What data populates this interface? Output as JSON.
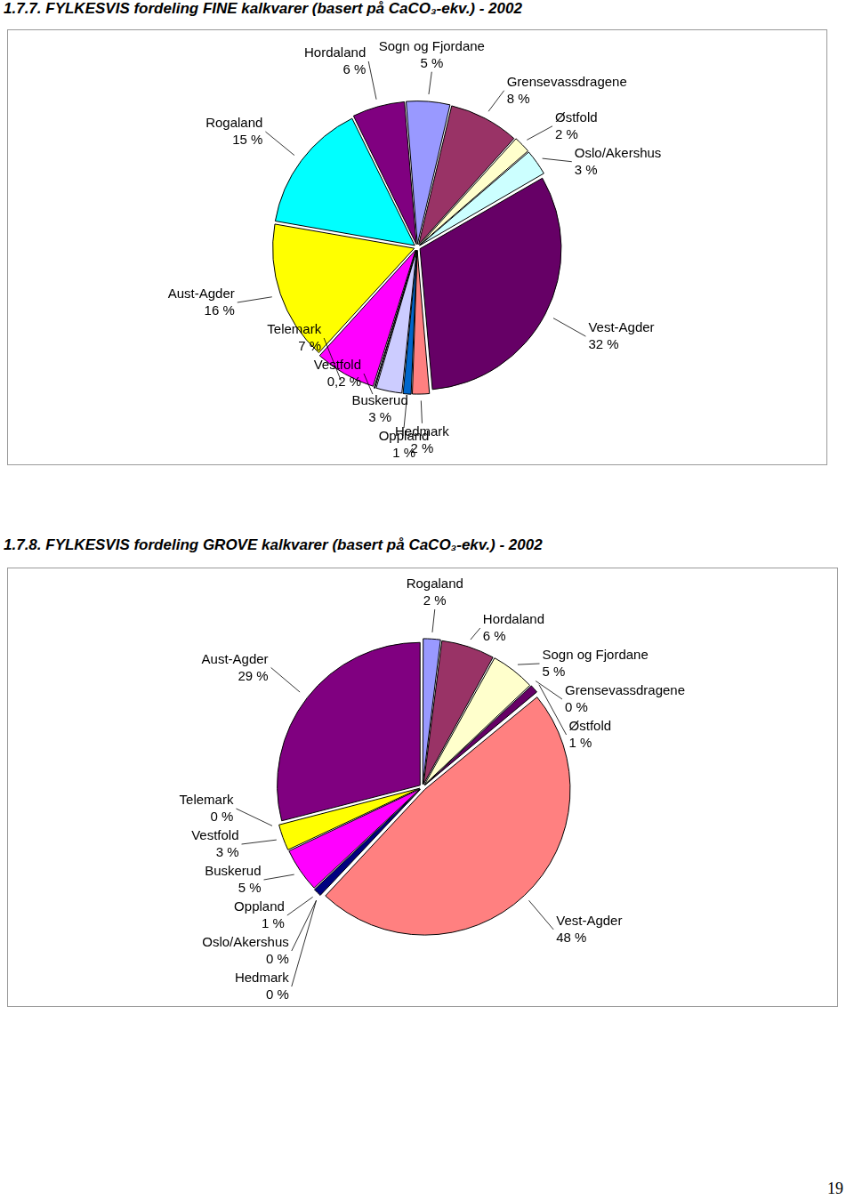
{
  "chart_data": [
    {
      "type": "pie",
      "title": "1.7.7. FYLKESVIS fordeling FINE kalkvarer (basert på CaCO₃-ekv.) - 2002",
      "categories": [
        "Vest-Agder",
        "Hedmark",
        "Oppland",
        "Buskerud",
        "Vestfold",
        "Telemark",
        "Aust-Agder",
        "Rogaland",
        "Hordaland",
        "Sogn og Fjordane",
        "Grensevassdragene",
        "Østfold",
        "Oslo/Akershus"
      ],
      "values": [
        32,
        2,
        1,
        3,
        0.2,
        7,
        16,
        15,
        6,
        5,
        8,
        2,
        3
      ],
      "value_labels": [
        "32 %",
        "2 %",
        "1 %",
        "3 %",
        "0,2 %",
        "7 %",
        "16 %",
        "15 %",
        "6 %",
        "5 %",
        "8 %",
        "2 %",
        "3 %"
      ],
      "colors": [
        "#660066",
        "#ff8080",
        "#0066cc",
        "#ccccff",
        "#000080",
        "#ff00ff",
        "#ffff00",
        "#00ffff",
        "#800080",
        "#9999ff",
        "#993366",
        "#ffffcc",
        "#ccffff"
      ],
      "data_labels": true
    },
    {
      "type": "pie",
      "title": "1.7.8. FYLKESVIS fordeling GROVE kalkvarer (basert på CaCO₃-ekv.) - 2002",
      "categories": [
        "Rogaland",
        "Hordaland",
        "Sogn og Fjordane",
        "Grensevassdragene",
        "Østfold",
        "Vest-Agder",
        "Oslo/Akershus",
        "Hedmark",
        "Oppland",
        "Buskerud",
        "Vestfold",
        "Telemark",
        "Aust-Agder"
      ],
      "values": [
        2,
        6,
        5,
        0,
        1,
        48,
        0,
        0,
        1,
        5,
        3,
        0,
        29
      ],
      "value_labels": [
        "2 %",
        "6 %",
        "5 %",
        "0 %",
        "1 %",
        "48 %",
        "0 %",
        "0 %",
        "1 %",
        "5 %",
        "3 %",
        "0 %",
        "29 %"
      ],
      "colors": [
        "#9999ff",
        "#993366",
        "#ffffcc",
        "#ccffff",
        "#660066",
        "#ff8080",
        "#0066cc",
        "#ccccff",
        "#000080",
        "#ff00ff",
        "#ffff00",
        "#00ffff",
        "#800080"
      ],
      "data_labels": true
    }
  ],
  "page_number": "19"
}
